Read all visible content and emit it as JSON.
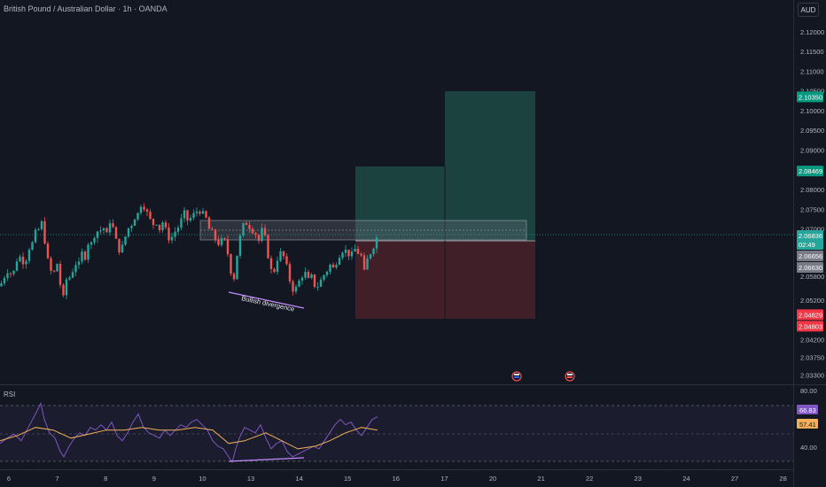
{
  "header": {
    "symbol_title": "British Pound / Australian Dollar · 1h · OANDA",
    "currency": "AUD"
  },
  "colors": {
    "background": "#131722",
    "up": "#26a69a",
    "down": "#ef5350",
    "profit_zone": "#1f4a45",
    "loss_zone": "#4a2129",
    "rsi_line": "#7e57c2",
    "rsi_ma": "#f2b05a",
    "divergence_line": "#c38bff",
    "tp_tag": "#089981",
    "sl_tag": "#f23645",
    "gray_tag": "#787b86"
  },
  "price_axis": {
    "ticks": [
      "2.12000",
      "2.11500",
      "2.11000",
      "2.10500",
      "2.10000",
      "2.09500",
      "2.09000",
      "2.08000",
      "2.07500",
      "2.07000",
      "2.05800",
      "2.05200",
      "2.04200",
      "2.03750",
      "2.03300"
    ],
    "tags": [
      {
        "label": "2.10350",
        "kind": "tp"
      },
      {
        "label": "2.08469",
        "kind": "tp"
      },
      {
        "label": "2.06836",
        "sub": "02:49",
        "kind": "last"
      },
      {
        "label": "2.06656",
        "kind": "gray"
      },
      {
        "label": "2.06630",
        "kind": "gray"
      },
      {
        "label": "2.04829",
        "kind": "sl"
      },
      {
        "label": "2.04803",
        "kind": "sl"
      }
    ]
  },
  "time_axis": {
    "ticks": [
      "6",
      "7",
      "8",
      "9",
      "10",
      "13",
      "14",
      "15",
      "16",
      "17",
      "20",
      "21",
      "22",
      "23",
      "24",
      "27",
      "28"
    ]
  },
  "annotation": {
    "text": "Bullish divergence"
  },
  "rsi": {
    "label": "RSI",
    "ticks": [
      "80.00",
      "40.00"
    ],
    "value": "66.83",
    "ma_value": "57.41"
  },
  "chart_data": {
    "type": "candlestick",
    "title": "British Pound / Australian Dollar · 1h · OANDA",
    "unit": "AUD",
    "x_axis_labels": [
      "6",
      "7",
      "8",
      "9",
      "10",
      "13",
      "14",
      "15",
      "16",
      "17",
      "20",
      "21",
      "22",
      "23",
      "24",
      "27",
      "28"
    ],
    "ylim": [
      2.032,
      2.124
    ],
    "close_path": [
      [
        0,
        2.0555
      ],
      [
        6,
        2.0585
      ],
      [
        10,
        2.06
      ],
      [
        14,
        2.0575
      ],
      [
        18,
        2.062
      ],
      [
        23,
        2.063
      ],
      [
        28,
        2.061
      ],
      [
        32,
        2.065
      ],
      [
        36,
        2.066
      ],
      [
        40,
        2.069
      ],
      [
        44,
        2.07
      ],
      [
        48,
        2.072
      ],
      [
        52,
        2.064
      ],
      [
        56,
        2.06
      ],
      [
        60,
        2.058
      ],
      [
        64,
        2.062
      ],
      [
        68,
        2.056
      ],
      [
        72,
        2.052
      ],
      [
        76,
        2.059
      ],
      [
        80,
        2.057
      ],
      [
        84,
        2.062
      ],
      [
        88,
        2.06
      ],
      [
        92,
        2.064
      ],
      [
        96,
        2.063
      ],
      [
        100,
        2.067
      ],
      [
        104,
        2.066
      ],
      [
        108,
        2.07
      ],
      [
        112,
        2.069
      ],
      [
        116,
        2.071
      ],
      [
        120,
        2.068
      ],
      [
        124,
        2.072
      ],
      [
        128,
        2.07
      ],
      [
        132,
        2.066
      ],
      [
        136,
        2.064
      ],
      [
        140,
        2.067
      ],
      [
        144,
        2.07
      ],
      [
        148,
        2.071
      ],
      [
        152,
        2.073
      ],
      [
        156,
        2.074
      ],
      [
        160,
        2.077
      ],
      [
        164,
        2.075
      ],
      [
        168,
        2.073
      ],
      [
        172,
        2.071
      ],
      [
        176,
        2.072
      ],
      [
        180,
        2.07
      ],
      [
        184,
        2.072
      ],
      [
        188,
        2.069
      ],
      [
        192,
        2.067
      ],
      [
        196,
        2.069
      ],
      [
        200,
        2.07
      ],
      [
        204,
        2.072
      ],
      [
        208,
        2.074
      ],
      [
        212,
        2.072
      ],
      [
        216,
        2.073
      ],
      [
        220,
        2.074
      ],
      [
        224,
        2.075
      ],
      [
        228,
        2.074
      ],
      [
        232,
        2.073
      ],
      [
        236,
        2.07
      ],
      [
        240,
        2.069
      ],
      [
        244,
        2.067
      ],
      [
        248,
        2.066
      ],
      [
        252,
        2.068
      ],
      [
        256,
        2.065
      ],
      [
        260,
        2.06
      ],
      [
        263,
        2.056
      ],
      [
        266,
        2.061
      ],
      [
        269,
        2.066
      ],
      [
        272,
        2.069
      ],
      [
        276,
        2.072
      ],
      [
        280,
        2.071
      ],
      [
        284,
        2.07
      ],
      [
        288,
        2.069
      ],
      [
        292,
        2.067
      ],
      [
        296,
        2.07
      ],
      [
        300,
        2.067
      ],
      [
        304,
        2.061
      ],
      [
        308,
        2.058
      ],
      [
        312,
        2.062
      ],
      [
        316,
        2.064
      ],
      [
        320,
        2.063
      ],
      [
        324,
        2.06
      ],
      [
        328,
        2.056
      ],
      [
        332,
        2.054
      ],
      [
        336,
        2.056
      ],
      [
        340,
        2.058
      ],
      [
        344,
        2.059
      ],
      [
        348,
        2.057
      ],
      [
        352,
        2.058
      ],
      [
        356,
        2.055
      ],
      [
        360,
        2.056
      ],
      [
        364,
        2.058
      ],
      [
        368,
        2.059
      ],
      [
        372,
        2.061
      ],
      [
        376,
        2.06
      ],
      [
        380,
        2.062
      ],
      [
        384,
        2.064
      ],
      [
        388,
        2.065
      ],
      [
        392,
        2.064
      ],
      [
        396,
        2.063
      ],
      [
        400,
        2.065
      ],
      [
        404,
        2.064
      ],
      [
        408,
        2.063
      ],
      [
        411,
        2.059
      ],
      [
        414,
        2.062
      ],
      [
        418,
        2.064
      ],
      [
        422,
        2.066
      ],
      [
        426,
        2.0684
      ]
    ],
    "rsi_path": [
      [
        0,
        48
      ],
      [
        8,
        52
      ],
      [
        16,
        55
      ],
      [
        24,
        50
      ],
      [
        32,
        60
      ],
      [
        40,
        70
      ],
      [
        46,
        78
      ],
      [
        50,
        66
      ],
      [
        56,
        56
      ],
      [
        62,
        52
      ],
      [
        68,
        42
      ],
      [
        72,
        38
      ],
      [
        78,
        46
      ],
      [
        84,
        52
      ],
      [
        90,
        56
      ],
      [
        96,
        54
      ],
      [
        102,
        60
      ],
      [
        108,
        58
      ],
      [
        114,
        62
      ],
      [
        120,
        58
      ],
      [
        126,
        64
      ],
      [
        132,
        54
      ],
      [
        138,
        50
      ],
      [
        144,
        56
      ],
      [
        150,
        64
      ],
      [
        156,
        70
      ],
      [
        162,
        60
      ],
      [
        168,
        56
      ],
      [
        174,
        54
      ],
      [
        180,
        52
      ],
      [
        186,
        58
      ],
      [
        192,
        54
      ],
      [
        198,
        58
      ],
      [
        204,
        62
      ],
      [
        210,
        60
      ],
      [
        216,
        64
      ],
      [
        222,
        66
      ],
      [
        228,
        62
      ],
      [
        234,
        58
      ],
      [
        240,
        50
      ],
      [
        246,
        46
      ],
      [
        252,
        44
      ],
      [
        258,
        38
      ],
      [
        262,
        34
      ],
      [
        266,
        44
      ],
      [
        270,
        52
      ],
      [
        276,
        60
      ],
      [
        282,
        58
      ],
      [
        288,
        56
      ],
      [
        294,
        62
      ],
      [
        300,
        52
      ],
      [
        306,
        44
      ],
      [
        312,
        48
      ],
      [
        318,
        50
      ],
      [
        324,
        42
      ],
      [
        330,
        38
      ],
      [
        336,
        40
      ],
      [
        342,
        42
      ],
      [
        348,
        44
      ],
      [
        354,
        46
      ],
      [
        360,
        44
      ],
      [
        366,
        50
      ],
      [
        372,
        56
      ],
      [
        378,
        62
      ],
      [
        384,
        66
      ],
      [
        390,
        62
      ],
      [
        396,
        64
      ],
      [
        402,
        58
      ],
      [
        408,
        54
      ],
      [
        414,
        60
      ],
      [
        420,
        66
      ],
      [
        426,
        68
      ]
    ],
    "rsi_ma_path": [
      [
        0,
        50
      ],
      [
        20,
        54
      ],
      [
        40,
        60
      ],
      [
        60,
        58
      ],
      [
        80,
        52
      ],
      [
        100,
        55
      ],
      [
        120,
        58
      ],
      [
        140,
        58
      ],
      [
        160,
        60
      ],
      [
        180,
        58
      ],
      [
        200,
        58
      ],
      [
        220,
        60
      ],
      [
        240,
        58
      ],
      [
        258,
        48
      ],
      [
        276,
        50
      ],
      [
        300,
        56
      ],
      [
        318,
        50
      ],
      [
        336,
        44
      ],
      [
        356,
        46
      ],
      [
        372,
        50
      ],
      [
        390,
        56
      ],
      [
        408,
        60
      ],
      [
        426,
        58
      ]
    ],
    "long_position": {
      "entry_area": [
        2.066,
        2.069
      ],
      "target_1": 2.08469,
      "target_2": 2.1035,
      "stop": 2.04829
    },
    "zone_box": [
      2.0664,
      2.0722
    ],
    "rsi_ylim": [
      30,
      85
    ]
  }
}
